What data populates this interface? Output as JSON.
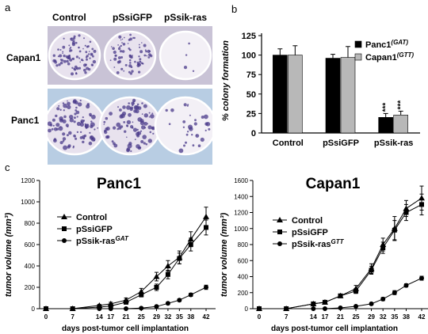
{
  "panel_a": {
    "letter": "a",
    "columns": [
      "Control",
      "pSsiGFP",
      "pSsik-ras"
    ],
    "rows": [
      "Capan1",
      "Panc1"
    ],
    "plate_colors": {
      "capan_bg": "#c9c3d6",
      "panc_bg": "#b8cde3",
      "colony": "#4a3a8a",
      "dish_rim": "#ffffff"
    }
  },
  "panel_c_letter": "c",
  "chart_data": [
    {
      "id": "colony",
      "panel": "b",
      "type": "bar",
      "ylabel": "% colony formation",
      "ylim": [
        0,
        125
      ],
      "yticks": [
        "0",
        "25",
        "50",
        "75",
        "100",
        "125"
      ],
      "categories": [
        "Control",
        "pSsiGFP",
        "pSsik-ras"
      ],
      "series": [
        {
          "name": "Panc1",
          "sup": "(GAT)",
          "color": "#000000",
          "values": [
            100,
            96,
            20
          ],
          "errors": [
            8,
            5,
            5
          ]
        },
        {
          "name": "Capan1",
          "sup": "(GTT)",
          "color": "#b8b8b8",
          "values": [
            100,
            97,
            23
          ],
          "errors": [
            12,
            14,
            5
          ]
        }
      ],
      "annotations": [
        "***",
        "***"
      ]
    },
    {
      "id": "panc1",
      "type": "line",
      "title": "Panc1",
      "ylabel": "tumor volume (mm³)",
      "xlabel": "days post-tumor cell implantation",
      "x": [
        0,
        7,
        14,
        17,
        21,
        25,
        29,
        32,
        35,
        38,
        42
      ],
      "ylim": [
        0,
        1200
      ],
      "yticks": [
        "0",
        "200",
        "400",
        "600",
        "800",
        "1000",
        "1200"
      ],
      "legend": [
        {
          "label": "Control",
          "sup": ""
        },
        {
          "label": "pSsiGFP",
          "sup": ""
        },
        {
          "label": "pSsik-ras",
          "sup": "GAT"
        }
      ],
      "series": [
        {
          "name": "Control",
          "marker": "triangle",
          "values": [
            0,
            0,
            30,
            45,
            80,
            160,
            300,
            400,
            480,
            650,
            860
          ],
          "errors": [
            0,
            0,
            10,
            15,
            20,
            30,
            40,
            50,
            60,
            70,
            90
          ]
        },
        {
          "name": "pSsiGFP",
          "marker": "square",
          "values": [
            0,
            0,
            15,
            25,
            60,
            130,
            200,
            320,
            470,
            600,
            760
          ],
          "errors": [
            0,
            0,
            8,
            10,
            15,
            20,
            30,
            40,
            50,
            60,
            70
          ]
        },
        {
          "name": "pSsik-ras",
          "marker": "circle",
          "values": [
            0,
            0,
            0,
            0,
            0,
            5,
            20,
            50,
            80,
            130,
            200
          ],
          "errors": [
            0,
            0,
            0,
            0,
            0,
            5,
            8,
            10,
            12,
            15,
            20
          ]
        }
      ]
    },
    {
      "id": "capan1",
      "type": "line",
      "title": "Capan1",
      "ylabel": "tumor volume (mm³)",
      "xlabel": "days post-tumor cell implantation",
      "x": [
        0,
        7,
        14,
        17,
        21,
        25,
        29,
        32,
        35,
        38,
        42
      ],
      "ylim": [
        0,
        1600
      ],
      "yticks": [
        "0",
        "200",
        "400",
        "600",
        "800",
        "1000",
        "1200",
        "1400",
        "1600"
      ],
      "legend": [
        {
          "label": "Control",
          "sup": ""
        },
        {
          "label": "pSsiGFP",
          "sup": ""
        },
        {
          "label": "pSsik-ras",
          "sup": "GTT"
        }
      ],
      "series": [
        {
          "name": "Control",
          "marker": "triangle",
          "values": [
            0,
            0,
            60,
            80,
            160,
            250,
            500,
            800,
            1000,
            1250,
            1380
          ],
          "errors": [
            0,
            0,
            10,
            15,
            20,
            40,
            60,
            80,
            150,
            100,
            150
          ]
        },
        {
          "name": "pSsiGFP",
          "marker": "square",
          "values": [
            0,
            0,
            60,
            80,
            160,
            220,
            480,
            760,
            980,
            1200,
            1300
          ],
          "errors": [
            0,
            0,
            10,
            15,
            20,
            30,
            50,
            70,
            120,
            100,
            130
          ]
        },
        {
          "name": "pSsik-ras",
          "marker": "circle",
          "values": [
            0,
            0,
            0,
            0,
            10,
            30,
            60,
            120,
            200,
            290,
            380
          ],
          "errors": [
            0,
            0,
            0,
            0,
            5,
            10,
            15,
            20,
            25,
            20,
            25
          ]
        }
      ]
    }
  ]
}
